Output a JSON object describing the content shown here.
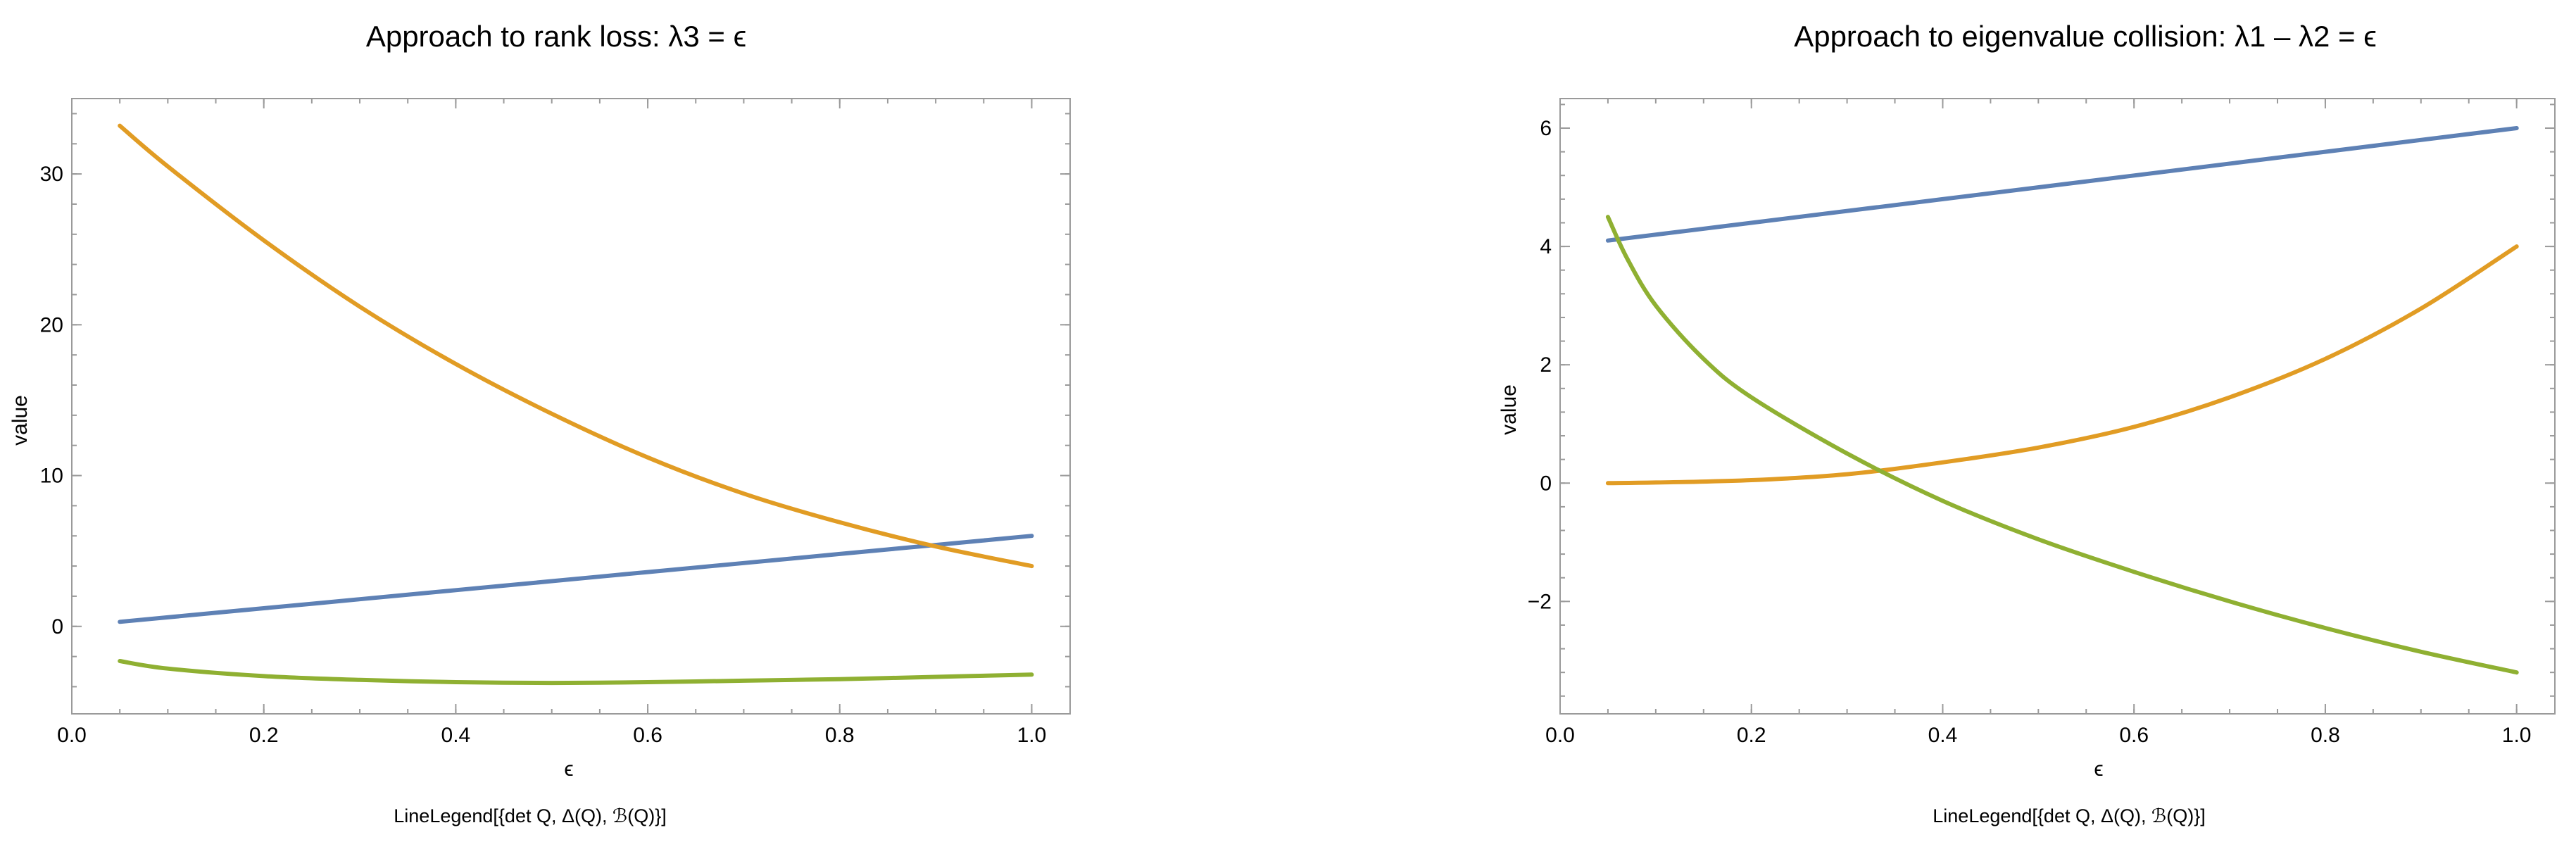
{
  "chart_data": [
    {
      "type": "line",
      "title": "Approach to rank loss: λ3 = ϵ",
      "xlabel": "ϵ",
      "ylabel": "value",
      "xlim": [
        0.0,
        1.04
      ],
      "ylim": [
        -5.8,
        35.0
      ],
      "xticks": [
        0.0,
        0.2,
        0.4,
        0.6,
        0.8,
        1.0
      ],
      "xtick_labels": [
        "0.0",
        "0.2",
        "0.4",
        "0.6",
        "0.8",
        "1.0"
      ],
      "yticks": [
        0,
        10,
        20,
        30
      ],
      "ytick_labels": [
        "0",
        "10",
        "20",
        "30"
      ],
      "grid": false,
      "legend_text": "LineLegend[{det Q, Δ(Q), ℬ(Q)}]",
      "series": [
        {
          "color": "#5e81b5",
          "x": [
            0.05,
            0.1,
            0.2,
            0.3,
            0.4,
            0.5,
            0.6,
            0.7,
            0.8,
            0.9,
            1.0
          ],
          "y": [
            0.3,
            0.6,
            1.2,
            1.8,
            2.4,
            3.0,
            3.6,
            4.2,
            4.8,
            5.4,
            6.0
          ]
        },
        {
          "color": "#e19c24",
          "x": [
            0.05,
            0.1,
            0.2,
            0.3,
            0.4,
            0.5,
            0.6,
            0.7,
            0.8,
            0.9,
            1.0
          ],
          "y": [
            33.2,
            30.5,
            25.6,
            21.2,
            17.4,
            14.1,
            11.2,
            8.8,
            6.9,
            5.3,
            4.0
          ]
        },
        {
          "color": "#8fb032",
          "x": [
            0.05,
            0.1,
            0.2,
            0.3,
            0.4,
            0.5,
            0.6,
            0.7,
            0.8,
            0.9,
            1.0
          ],
          "y": [
            -2.3,
            -2.8,
            -3.3,
            -3.55,
            -3.7,
            -3.75,
            -3.7,
            -3.6,
            -3.5,
            -3.35,
            -3.2
          ]
        }
      ]
    },
    {
      "type": "line",
      "title": "Approach to eigenvalue collision: λ1 – λ2 = ϵ",
      "xlabel": "ϵ",
      "ylabel": "value",
      "xlim": [
        0.0,
        1.04
      ],
      "ylim": [
        -3.9,
        6.5
      ],
      "xticks": [
        0.0,
        0.2,
        0.4,
        0.6,
        0.8,
        1.0
      ],
      "xtick_labels": [
        "0.0",
        "0.2",
        "0.4",
        "0.6",
        "0.8",
        "1.0"
      ],
      "yticks": [
        -2,
        0,
        2,
        4,
        6
      ],
      "ytick_labels": [
        "−2",
        "0",
        "2",
        "4",
        "6"
      ],
      "grid": false,
      "legend_text": "LineLegend[{det Q, Δ(Q), ℬ(Q)}]",
      "series": [
        {
          "color": "#5e81b5",
          "x": [
            0.05,
            0.2,
            0.4,
            0.6,
            0.8,
            1.0
          ],
          "y": [
            4.1,
            4.4,
            4.8,
            5.2,
            5.6,
            6.0
          ]
        },
        {
          "color": "#e19c24",
          "x": [
            0.05,
            0.1,
            0.2,
            0.3,
            0.4,
            0.5,
            0.6,
            0.7,
            0.8,
            0.9,
            1.0
          ],
          "y": [
            0.0,
            0.01,
            0.05,
            0.15,
            0.35,
            0.6,
            0.95,
            1.45,
            2.1,
            2.95,
            4.0
          ]
        },
        {
          "color": "#8fb032",
          "x": [
            0.05,
            0.07,
            0.1,
            0.15,
            0.2,
            0.3,
            0.4,
            0.5,
            0.6,
            0.7,
            0.8,
            0.9,
            1.0
          ],
          "y": [
            4.5,
            3.8,
            3.0,
            2.1,
            1.45,
            0.5,
            -0.3,
            -0.95,
            -1.5,
            -2.0,
            -2.45,
            -2.85,
            -3.2
          ]
        }
      ]
    }
  ]
}
